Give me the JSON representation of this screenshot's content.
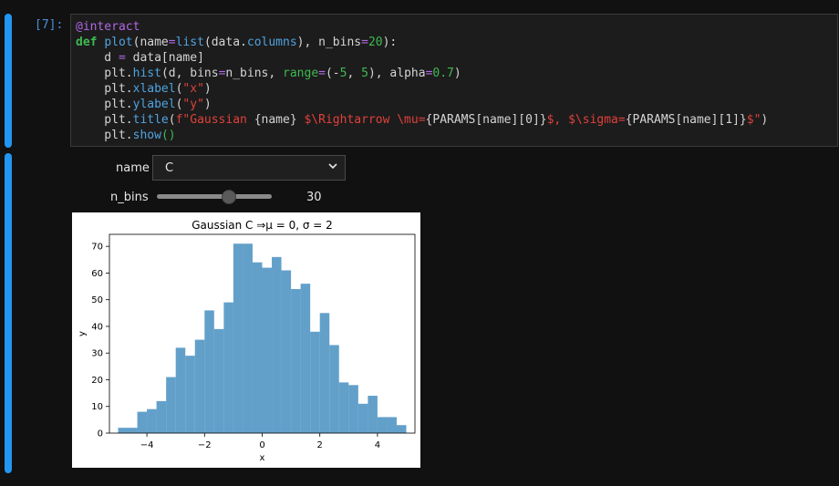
{
  "cell": {
    "prompt": "[7]:",
    "code_lines": [
      [
        [
          "dec",
          "@interact"
        ]
      ],
      [
        [
          "kw",
          "def "
        ],
        [
          "fn",
          "plot"
        ],
        [
          "",
          "(name"
        ],
        [
          "op",
          "="
        ],
        [
          "fn",
          "list"
        ],
        [
          "",
          "(data."
        ],
        [
          "fn",
          "columns"
        ],
        [
          "",
          "), n_bins"
        ],
        [
          "op",
          "="
        ],
        [
          "num",
          "20"
        ],
        [
          "",
          "):"
        ]
      ],
      [
        [
          "",
          "    d "
        ],
        [
          "op",
          "="
        ],
        [
          "",
          " data[name]"
        ]
      ],
      [
        [
          "",
          "    plt."
        ],
        [
          "fn",
          "hist"
        ],
        [
          "",
          "(d, bins"
        ],
        [
          "op",
          "="
        ],
        [
          "",
          "n_bins, "
        ],
        [
          "kwarg",
          "range"
        ],
        [
          "op",
          "="
        ],
        [
          "",
          "(-"
        ],
        [
          "num",
          "5"
        ],
        [
          "",
          ", "
        ],
        [
          "num",
          "5"
        ],
        [
          "",
          "), alpha"
        ],
        [
          "op",
          "="
        ],
        [
          "num",
          "0.7"
        ],
        [
          "",
          ")"
        ]
      ],
      [
        [
          "",
          "    plt."
        ],
        [
          "fn",
          "xlabel"
        ],
        [
          "",
          "("
        ],
        [
          "str",
          "\"x\""
        ],
        [
          "",
          ")"
        ]
      ],
      [
        [
          "",
          "    plt."
        ],
        [
          "fn",
          "ylabel"
        ],
        [
          "",
          "("
        ],
        [
          "str",
          "\"y\""
        ],
        [
          "",
          ")"
        ]
      ],
      [
        [
          "",
          "    plt."
        ],
        [
          "fn",
          "title"
        ],
        [
          "",
          "("
        ],
        [
          "str",
          "f\"Gaussian "
        ],
        [
          "",
          "{name}"
        ],
        [
          "str",
          " $\\Rightarrow \\mu="
        ],
        [
          "",
          "{PARAMS[name][0]}"
        ],
        [
          "str",
          "$, $\\sigma="
        ],
        [
          "",
          "{PARAMS[name][1]}"
        ],
        [
          "str",
          "$\""
        ],
        [
          "",
          ")"
        ]
      ],
      [
        [
          "",
          "    plt."
        ],
        [
          "fn",
          "show"
        ],
        [
          "kwarg",
          "()"
        ]
      ]
    ]
  },
  "widgets": {
    "name_label": "name",
    "name_value": "C",
    "nbins_label": "n_bins",
    "nbins_value": "30",
    "nbins_fraction": 0.5
  },
  "chart_data": {
    "type": "bar",
    "title": "Gaussian C ⇒μ = 0, σ = 2",
    "xlabel": "x",
    "ylabel": "y",
    "xlim": [
      -5.3,
      5.3
    ],
    "ylim": [
      0,
      74.5
    ],
    "xticks": [
      -4,
      -2,
      0,
      2,
      4
    ],
    "xtick_labels": [
      "−4",
      "−2",
      "0",
      "2",
      "4"
    ],
    "yticks": [
      0,
      10,
      20,
      30,
      40,
      50,
      60,
      70
    ],
    "bin_range": [
      -5,
      5
    ],
    "bins": 30,
    "values": [
      2,
      2,
      8,
      9,
      12,
      21,
      32,
      29,
      35,
      46,
      39,
      49,
      71,
      71,
      64,
      62,
      66,
      61,
      54,
      56,
      38,
      45,
      33,
      19,
      18,
      11,
      14,
      6,
      6,
      3
    ],
    "color": "#1f77b4",
    "alpha": 0.7
  }
}
